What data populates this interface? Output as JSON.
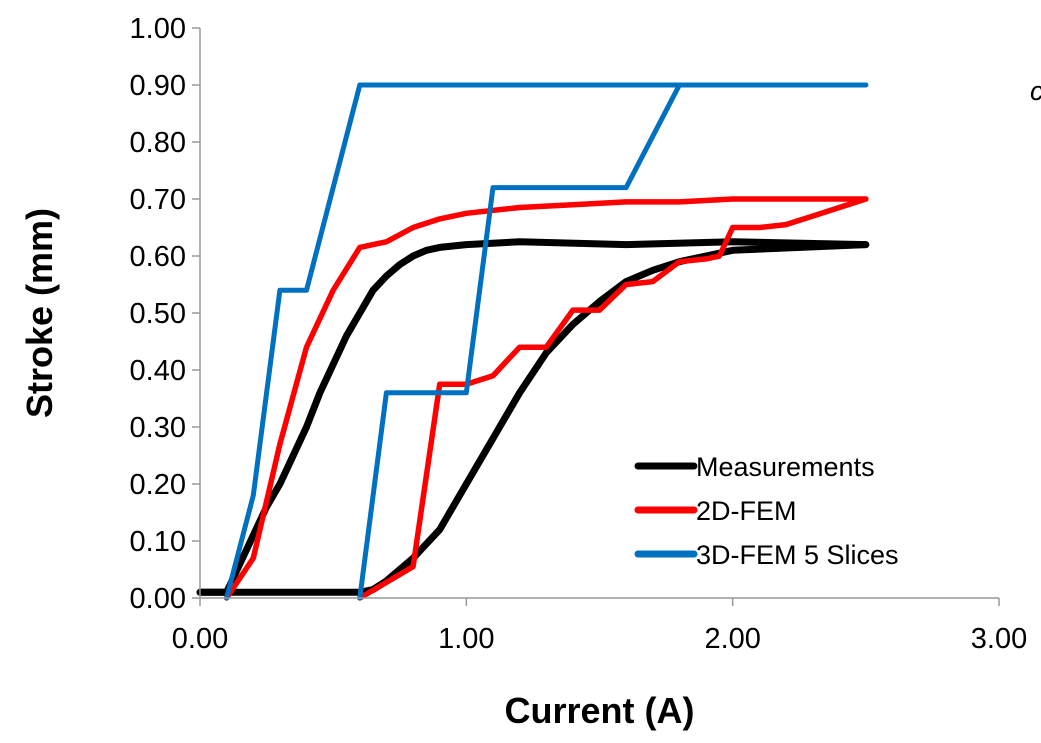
{
  "chart_data": {
    "type": "line",
    "title": "",
    "xlabel": "Current (A)",
    "ylabel": "Stroke (mm)",
    "xlim": [
      0,
      3
    ],
    "ylim": [
      0,
      1
    ],
    "x_ticks": [
      "0.00",
      "1.00",
      "2.00",
      "3.00"
    ],
    "y_ticks": [
      "0.00",
      "0.10",
      "0.20",
      "0.30",
      "0.40",
      "0.50",
      "0.60",
      "0.70",
      "0.80",
      "0.90",
      "1.00"
    ],
    "grid": false,
    "legend_position": "bottom-right",
    "corner_label": "c",
    "series": [
      {
        "name": "Measurements",
        "color": "#000000",
        "branches": [
          [
            [
              0.0,
              0.01
            ],
            [
              0.1,
              0.01
            ],
            [
              0.15,
              0.06
            ],
            [
              0.2,
              0.11
            ],
            [
              0.25,
              0.16
            ],
            [
              0.3,
              0.2
            ],
            [
              0.35,
              0.25
            ],
            [
              0.4,
              0.3
            ],
            [
              0.45,
              0.36
            ],
            [
              0.5,
              0.41
            ],
            [
              0.55,
              0.46
            ],
            [
              0.6,
              0.5
            ],
            [
              0.65,
              0.54
            ],
            [
              0.7,
              0.565
            ],
            [
              0.75,
              0.585
            ],
            [
              0.8,
              0.6
            ],
            [
              0.85,
              0.61
            ],
            [
              0.9,
              0.615
            ],
            [
              1.0,
              0.62
            ],
            [
              1.2,
              0.625
            ],
            [
              1.6,
              0.62
            ],
            [
              2.0,
              0.625
            ],
            [
              2.5,
              0.62
            ]
          ],
          [
            [
              2.5,
              0.62
            ],
            [
              2.0,
              0.61
            ],
            [
              1.9,
              0.6
            ],
            [
              1.8,
              0.59
            ],
            [
              1.7,
              0.575
            ],
            [
              1.6,
              0.555
            ],
            [
              1.5,
              0.52
            ],
            [
              1.4,
              0.48
            ],
            [
              1.3,
              0.43
            ],
            [
              1.2,
              0.36
            ],
            [
              1.1,
              0.28
            ],
            [
              1.0,
              0.2
            ],
            [
              0.9,
              0.12
            ],
            [
              0.8,
              0.07
            ],
            [
              0.7,
              0.03
            ],
            [
              0.65,
              0.015
            ],
            [
              0.6,
              0.01
            ],
            [
              0.0,
              0.01
            ]
          ]
        ]
      },
      {
        "name": "2D-FEM",
        "color": "#ff0000",
        "branches": [
          [
            [
              0.1,
              0.0
            ],
            [
              0.2,
              0.07
            ],
            [
              0.3,
              0.27
            ],
            [
              0.4,
              0.44
            ],
            [
              0.5,
              0.54
            ],
            [
              0.6,
              0.615
            ],
            [
              0.7,
              0.625
            ],
            [
              0.8,
              0.65
            ],
            [
              0.9,
              0.665
            ],
            [
              1.0,
              0.675
            ],
            [
              1.2,
              0.685
            ],
            [
              1.4,
              0.69
            ],
            [
              1.6,
              0.695
            ],
            [
              1.8,
              0.695
            ],
            [
              2.0,
              0.7
            ],
            [
              2.5,
              0.7
            ]
          ],
          [
            [
              2.5,
              0.7
            ],
            [
              2.3,
              0.67
            ],
            [
              2.2,
              0.655
            ],
            [
              2.1,
              0.65
            ],
            [
              2.0,
              0.65
            ],
            [
              1.95,
              0.6
            ],
            [
              1.9,
              0.595
            ],
            [
              1.8,
              0.59
            ],
            [
              1.7,
              0.555
            ],
            [
              1.6,
              0.55
            ],
            [
              1.5,
              0.505
            ],
            [
              1.4,
              0.505
            ],
            [
              1.3,
              0.44
            ],
            [
              1.2,
              0.44
            ],
            [
              1.1,
              0.39
            ],
            [
              1.0,
              0.375
            ],
            [
              0.9,
              0.375
            ],
            [
              0.8,
              0.055
            ],
            [
              0.6,
              0.0
            ]
          ]
        ]
      },
      {
        "name": "3D-FEM 5 Slices",
        "color": "#0070c0",
        "branches": [
          [
            [
              0.1,
              0.0
            ],
            [
              0.2,
              0.18
            ],
            [
              0.3,
              0.54
            ],
            [
              0.4,
              0.54
            ],
            [
              0.6,
              0.9
            ],
            [
              2.5,
              0.9
            ]
          ],
          [
            [
              2.5,
              0.9
            ],
            [
              1.8,
              0.9
            ],
            [
              1.6,
              0.72
            ],
            [
              1.1,
              0.72
            ],
            [
              1.0,
              0.36
            ],
            [
              0.7,
              0.36
            ],
            [
              0.6,
              0.0
            ]
          ]
        ]
      }
    ]
  }
}
